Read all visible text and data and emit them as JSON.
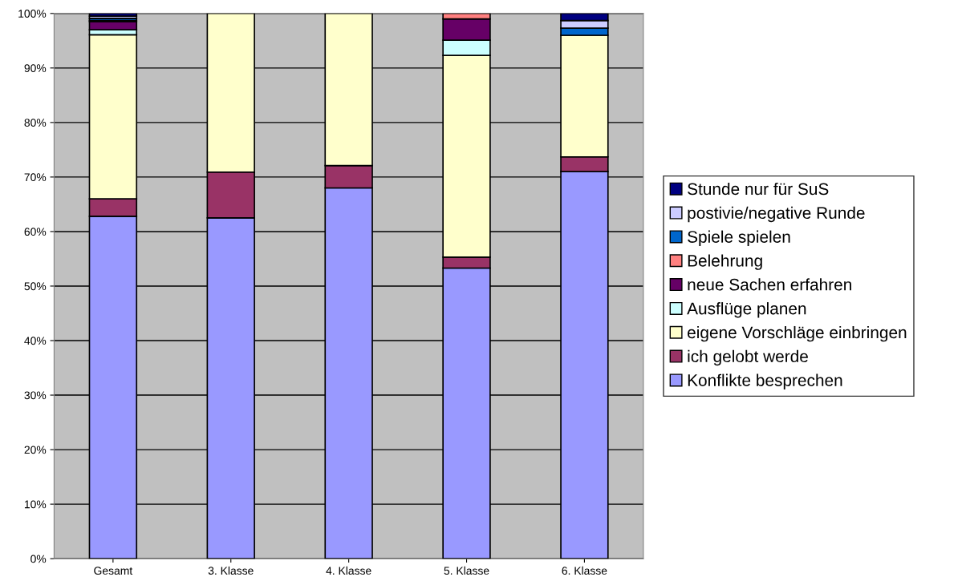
{
  "chart_data": {
    "type": "bar",
    "stacked": true,
    "categories": [
      "Gesamt",
      "3. Klasse",
      "4. Klasse",
      "5. Klasse",
      "6. Klasse"
    ],
    "series": [
      {
        "name": "Konflikte besprechen",
        "color": "#9999ff",
        "values": [
          62.8,
          62.5,
          68,
          53.3,
          71
        ]
      },
      {
        "name": "ich gelobt werde",
        "color": "#993366",
        "values": [
          3.2,
          8.4,
          4.1,
          2,
          2.7
        ]
      },
      {
        "name": "eigene Vorschläge einbringen",
        "color": "#ffffcc",
        "values": [
          30.1,
          29.1,
          27.9,
          37,
          22.3
        ]
      },
      {
        "name": "Ausflüge planen",
        "color": "#ccffff",
        "values": [
          0.9,
          null,
          null,
          2.8,
          null
        ]
      },
      {
        "name": "neue Sachen erfahren",
        "color": "#660066",
        "values": [
          1.5,
          null,
          null,
          3.9,
          null
        ]
      },
      {
        "name": "Belehrung",
        "color": "#ff8080",
        "values": [
          0.2,
          null,
          null,
          1,
          null
        ]
      },
      {
        "name": "Spiele spielen",
        "color": "#0066cc",
        "values": [
          0.4,
          null,
          null,
          null,
          1.3
        ]
      },
      {
        "name": "postivie/negative Runde",
        "color": "#ccccff",
        "values": [
          0.4,
          null,
          null,
          null,
          1.4
        ]
      },
      {
        "name": "Stunde nur für SuS",
        "color": "#000080",
        "values": [
          0.5,
          null,
          null,
          null,
          1.3
        ]
      }
    ],
    "ylim": [
      0,
      100
    ],
    "yticks": [
      {
        "value": 0,
        "label": "0%"
      },
      {
        "value": 10,
        "label": "10%"
      },
      {
        "value": 20,
        "label": "20%"
      },
      {
        "value": 30,
        "label": "30%"
      },
      {
        "value": 40,
        "label": "40%"
      },
      {
        "value": 50,
        "label": "50%"
      },
      {
        "value": 60,
        "label": "60%"
      },
      {
        "value": 70,
        "label": "70%"
      },
      {
        "value": 80,
        "label": "80%"
      },
      {
        "value": 90,
        "label": "90%"
      },
      {
        "value": 100,
        "label": "100%"
      }
    ],
    "grid": "y",
    "legend": "right"
  }
}
